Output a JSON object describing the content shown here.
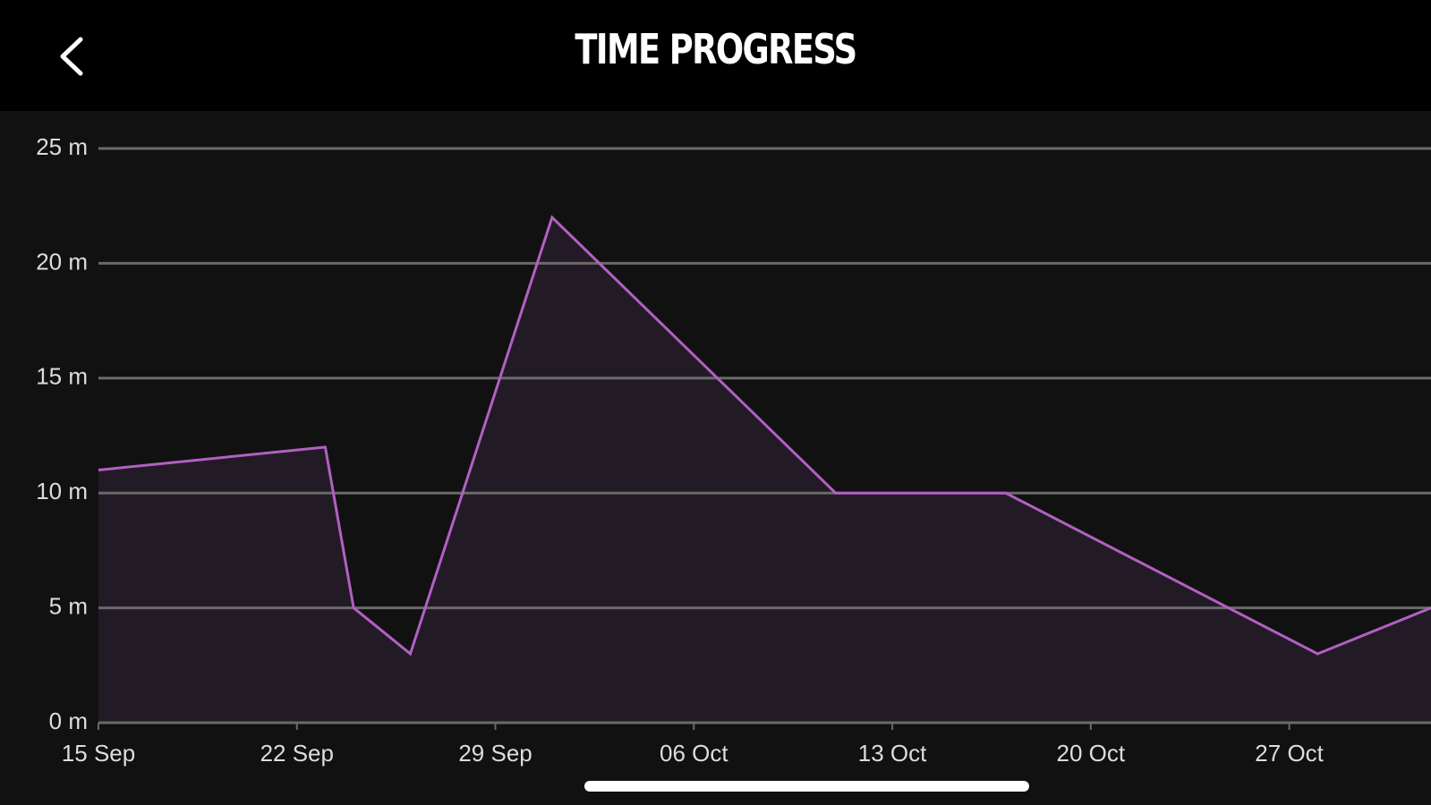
{
  "header": {
    "title": "TIME PROGRESS"
  },
  "chart_data": {
    "type": "area",
    "x": [
      "15 Sep",
      "23 Sep",
      "24 Sep",
      "26 Sep",
      "1 Oct",
      "11 Oct",
      "17 Oct",
      "28 Oct",
      "1 Nov"
    ],
    "values": [
      11,
      12,
      5,
      3,
      22,
      10,
      10,
      3,
      5
    ],
    "color": "#b35fc4",
    "fill": "#221b25",
    "xlim": [
      "15 Sep",
      "1 Nov"
    ],
    "xticks": [
      "15 Sep",
      "22 Sep",
      "29 Sep",
      "06 Oct",
      "13 Oct",
      "20 Oct",
      "27 Oct"
    ],
    "ylim": [
      0,
      25
    ],
    "yticks": [
      {
        "value": 0,
        "label": "0 m"
      },
      {
        "value": 5,
        "label": "5 m"
      },
      {
        "value": 10,
        "label": "10 m"
      },
      {
        "value": 15,
        "label": "15 m"
      },
      {
        "value": 20,
        "label": "20 m"
      },
      {
        "value": 25,
        "label": "25 m"
      }
    ],
    "grid": true
  }
}
